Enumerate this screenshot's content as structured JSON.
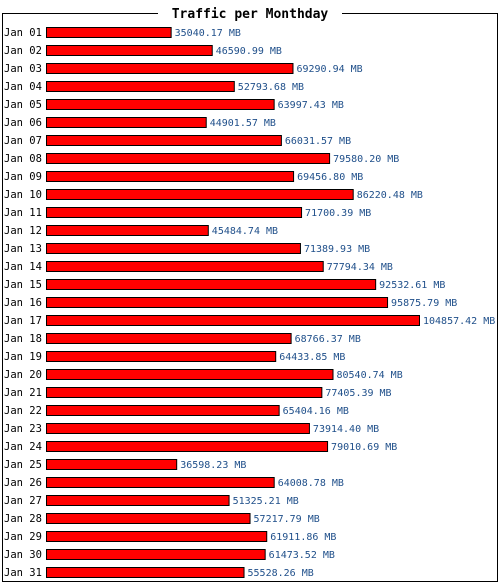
{
  "chart_data": {
    "type": "bar",
    "orientation": "horizontal",
    "title": "Traffic per Monthday",
    "bar_color": "#ff0000",
    "label_color": "#1f4f8a",
    "categories": [
      "Jan 01",
      "Jan 02",
      "Jan 03",
      "Jan 04",
      "Jan 05",
      "Jan 06",
      "Jan 07",
      "Jan 08",
      "Jan 09",
      "Jan 10",
      "Jan 11",
      "Jan 12",
      "Jan 13",
      "Jan 14",
      "Jan 15",
      "Jan 16",
      "Jan 17",
      "Jan 18",
      "Jan 19",
      "Jan 20",
      "Jan 21",
      "Jan 22",
      "Jan 23",
      "Jan 24",
      "Jan 25",
      "Jan 26",
      "Jan 27",
      "Jan 28",
      "Jan 29",
      "Jan 30",
      "Jan 31"
    ],
    "values": [
      35040.17,
      46590.99,
      69290.94,
      52793.68,
      63997.43,
      44901.57,
      66031.57,
      79580.2,
      69456.8,
      86220.48,
      71700.39,
      45484.74,
      71389.93,
      77794.34,
      92532.61,
      95875.79,
      104857.42,
      68766.37,
      64433.85,
      80540.74,
      77405.39,
      65404.16,
      73914.4,
      79010.69,
      36598.23,
      64008.78,
      51325.21,
      57217.79,
      61911.86,
      61473.52,
      55528.26
    ],
    "value_labels": [
      "35040.17 MB",
      "46590.99 MB",
      "69290.94 MB",
      "52793.68 MB",
      "63997.43 MB",
      "44901.57 MB",
      "66031.57 MB",
      "79580.20 MB",
      "69456.80 MB",
      "86220.48 MB",
      "71700.39 MB",
      "45484.74 MB",
      "71389.93 MB",
      "77794.34 MB",
      "92532.61 MB",
      "95875.79 MB",
      "104857.42 MB",
      "68766.37 MB",
      "64433.85 MB",
      "80540.74 MB",
      "77405.39 MB",
      "65404.16 MB",
      "73914.40 MB",
      "79010.69 MB",
      "36598.23 MB",
      "64008.78 MB",
      "51325.21 MB",
      "57217.79 MB",
      "61911.86 MB",
      "61473.52 MB",
      "55528.26 MB"
    ],
    "unit": "MB"
  }
}
